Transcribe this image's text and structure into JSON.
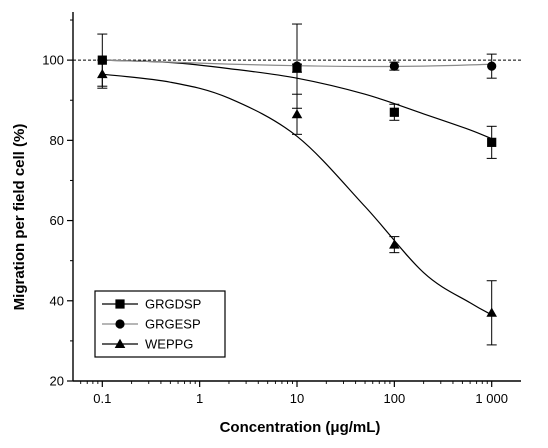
{
  "chart_data": {
    "type": "scatter",
    "xlabel": "Concentration (μg/mL)",
    "ylabel": "Migration per field cell (%)",
    "x_scale": "log",
    "xlim": [
      0.05,
      2000
    ],
    "ylim": [
      20,
      112
    ],
    "x_ticks": [
      0.1,
      1,
      10,
      100,
      1000
    ],
    "x_tick_labels": [
      "0.1",
      "1",
      "10",
      "100",
      "1 000"
    ],
    "y_ticks": [
      20,
      40,
      60,
      80,
      100
    ],
    "y_tick_labels": [
      "20",
      "40",
      "60",
      "80",
      "100"
    ],
    "reference_line_y": 100,
    "legend_position": "bottom-left",
    "series": [
      {
        "name": "GRGDSP",
        "marker": "square",
        "x": [
          0.1,
          10,
          100,
          1000
        ],
        "y": [
          100,
          98,
          87,
          79.5
        ],
        "err": [
          6.5,
          1,
          2,
          4
        ],
        "curve_y": [
          100,
          99.4,
          97.9,
          95.5,
          91.5,
          86.6,
          82.6,
          80.4
        ]
      },
      {
        "name": "GRGESP",
        "marker": "circle",
        "x": [
          0.1,
          10,
          100,
          1000
        ],
        "y": [
          100,
          98.5,
          98.5,
          98.5
        ],
        "err": [
          0,
          10.5,
          1,
          3
        ],
        "curve_y": [
          100,
          99.5,
          99,
          98.6,
          98.4,
          98.5,
          98.8,
          99
        ]
      },
      {
        "name": "WEPPG",
        "marker": "triangle",
        "x": [
          0.1,
          10,
          100,
          1000
        ],
        "y": [
          96.5,
          86.5,
          54,
          37
        ],
        "err": [
          3.5,
          5,
          2,
          8
        ],
        "curve_y": [
          96.5,
          94.5,
          90.5,
          81,
          63.5,
          47,
          39.5,
          36.5
        ]
      }
    ],
    "curve_x": [
      0.1,
      0.5,
      2,
      10,
      50,
      200,
      600,
      1000
    ]
  }
}
